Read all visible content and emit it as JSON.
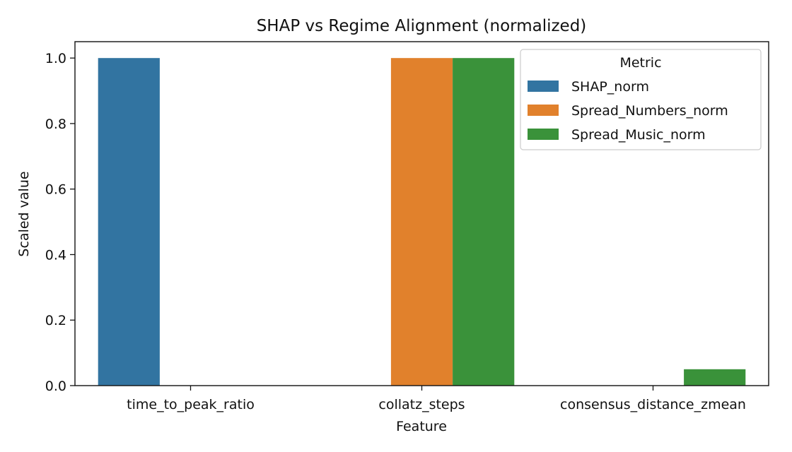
{
  "chart_data": {
    "type": "bar",
    "title": "SHAP vs Regime Alignment (normalized)",
    "xlabel": "Feature",
    "ylabel": "Scaled value",
    "categories": [
      "time_to_peak_ratio",
      "collatz_steps",
      "consensus_distance_zmean"
    ],
    "series": [
      {
        "name": "SHAP_norm",
        "color": "#3274a1",
        "values": [
          1.0,
          0.0,
          0.0
        ]
      },
      {
        "name": "Spread_Numbers_norm",
        "color": "#e1812c",
        "values": [
          0.0,
          1.0,
          0.0
        ]
      },
      {
        "name": "Spread_Music_norm",
        "color": "#3a923a",
        "values": [
          0.0,
          1.0,
          0.05
        ]
      }
    ],
    "ylim": [
      0,
      1.05
    ],
    "yticks": [
      "0.0",
      "0.2",
      "0.4",
      "0.6",
      "0.8",
      "1.0"
    ],
    "legend": {
      "title": "Metric",
      "position": "top-right"
    },
    "grid": false
  }
}
